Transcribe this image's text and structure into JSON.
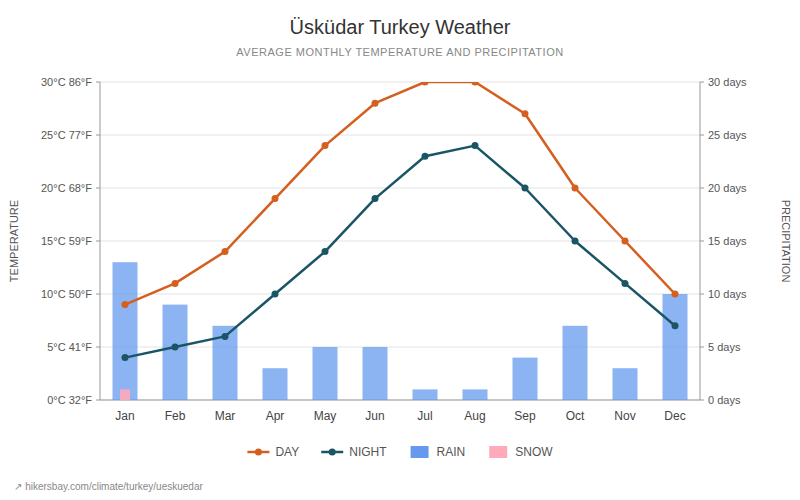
{
  "chart_data": {
    "type": "combo",
    "title": "Üsküdar Turkey Weather",
    "subtitle": "AVERAGE MONTHLY TEMPERATURE AND PRECIPITATION",
    "y_label": "TEMPERATURE",
    "y2_label": "PRECIPITATION",
    "annotations": [
      "↗ hikersbay.com/climate/turkey/ueskuedar"
    ],
    "categories": [
      "Jan",
      "Feb",
      "Mar",
      "Apr",
      "May",
      "Jun",
      "Jul",
      "Aug",
      "Sep",
      "Oct",
      "Nov",
      "Dec"
    ],
    "series": [
      {
        "name": "DAY",
        "type": "line",
        "color": "#d45f1e",
        "marker": "circle",
        "values": [
          9,
          11,
          14,
          19,
          24,
          28,
          30,
          30,
          27,
          20,
          15,
          10
        ]
      },
      {
        "name": "NIGHT",
        "type": "line",
        "color": "#1a5566",
        "marker": "circle",
        "values": [
          4,
          5,
          6,
          10,
          14,
          19,
          23,
          24,
          20,
          15,
          11,
          7
        ]
      },
      {
        "name": "RAIN",
        "type": "bar",
        "axis": "y2",
        "color": "#6699ee",
        "values": [
          13,
          9,
          7,
          3,
          5,
          5,
          1,
          1,
          4,
          7,
          3,
          10
        ]
      },
      {
        "name": "SNOW",
        "type": "bar",
        "axis": "y2",
        "color": "#ffaabb",
        "values": [
          1,
          0,
          0,
          0,
          0,
          0,
          0,
          0,
          0,
          0,
          0,
          0
        ]
      }
    ],
    "ylim": [
      0,
      30
    ],
    "yticks": [
      {
        "value": 0,
        "label": "0°C 32°F"
      },
      {
        "value": 5,
        "label": "5°C 41°F"
      },
      {
        "value": 10,
        "label": "10°C 50°F"
      },
      {
        "value": 15,
        "label": "15°C 59°F"
      },
      {
        "value": 20,
        "label": "20°C 68°F"
      },
      {
        "value": 25,
        "label": "25°C 77°F"
      },
      {
        "value": 30,
        "label": "30°C 86°F"
      }
    ],
    "y2lim": [
      0,
      30
    ],
    "y2ticks": [
      {
        "value": 0,
        "label": "0 days"
      },
      {
        "value": 5,
        "label": "5 days"
      },
      {
        "value": 10,
        "label": "10 days"
      },
      {
        "value": 15,
        "label": "15 days"
      },
      {
        "value": 20,
        "label": "20 days"
      },
      {
        "value": 25,
        "label": "25 days"
      },
      {
        "value": 30,
        "label": "30 days"
      }
    ],
    "grid": true,
    "legend": "bottom"
  }
}
